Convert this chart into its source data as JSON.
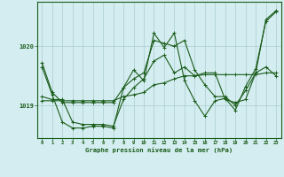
{
  "title": "Graphe pression niveau de la mer (hPa)",
  "background_color": "#d4edf0",
  "grid_color": "#aaccd0",
  "line_color": "#1a5c1a",
  "x_ticks": [
    0,
    1,
    2,
    3,
    4,
    5,
    6,
    7,
    8,
    9,
    10,
    11,
    12,
    13,
    14,
    15,
    16,
    17,
    18,
    19,
    20,
    21,
    22,
    23
  ],
  "y_ticks": [
    1019,
    1020
  ],
  "ylim": [
    1018.45,
    1020.75
  ],
  "xlim": [
    -0.5,
    23.5
  ],
  "series": [
    [
      1019.72,
      1019.22,
      1019.05,
      1019.05,
      1019.05,
      1019.05,
      1019.05,
      1019.05,
      1019.3,
      1019.45,
      1019.55,
      1020.1,
      1020.05,
      1020.0,
      1020.1,
      1019.6,
      1019.35,
      1019.15,
      1019.15,
      1019.0,
      1019.25,
      1019.55,
      1020.45,
      1020.6
    ],
    [
      1019.15,
      1019.1,
      1019.1,
      1018.72,
      1018.68,
      1018.68,
      1018.68,
      1018.65,
      1019.1,
      1019.3,
      1019.45,
      1019.75,
      1019.85,
      1019.55,
      1019.65,
      1019.5,
      1019.55,
      1019.55,
      1019.1,
      1019.05,
      1019.1,
      1019.55,
      1019.65,
      1019.5
    ],
    [
      1019.08,
      1019.08,
      1019.08,
      1019.08,
      1019.08,
      1019.08,
      1019.08,
      1019.08,
      1019.15,
      1019.18,
      1019.22,
      1019.35,
      1019.38,
      1019.45,
      1019.5,
      1019.5,
      1019.52,
      1019.52,
      1019.52,
      1019.52,
      1019.52,
      1019.52,
      1019.55,
      1019.55
    ],
    [
      1019.65,
      1019.18,
      1018.72,
      1018.62,
      1018.62,
      1018.65,
      1018.65,
      1018.62,
      1019.3,
      1019.6,
      1019.42,
      1020.22,
      1019.98,
      1020.22,
      1019.42,
      1019.08,
      1018.82,
      1019.08,
      1019.12,
      1018.92,
      1019.32,
      1019.62,
      1020.42,
      1020.58
    ]
  ]
}
